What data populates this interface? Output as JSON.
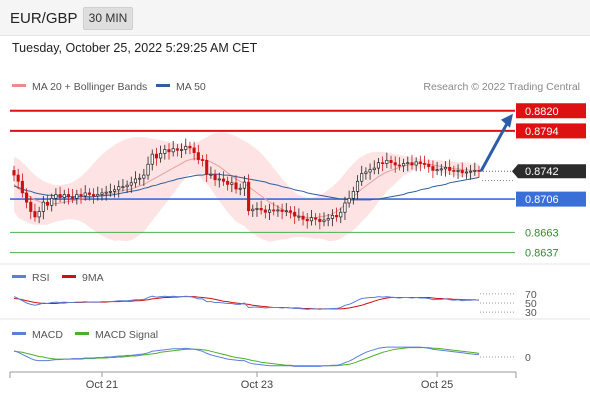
{
  "header": {
    "symbol": "EUR/GBP",
    "timeframe": "30 MIN",
    "datetime": "Tuesday, October 25, 2022 5:29:25 AM CET"
  },
  "colors": {
    "candle_up": "#222222",
    "candle_down": "#cc1111",
    "resistance": "#dd1111",
    "support": "#3a6fd8",
    "target": "#4caf50",
    "ma20": "#e8a0a0",
    "bollinger_fill": "#fde3e3",
    "ma50": "#2f5f9e",
    "arrow": "#2a5ca8",
    "current_price_bg": "#2b2b2b",
    "rsi": "#5b7fdb",
    "rsi_9ma": "#cc1111",
    "macd": "#5b7fdb",
    "macd_signal": "#4caf2a"
  },
  "chart_data": [
    {
      "type": "candlestick",
      "title": "",
      "legend": [
        {
          "name": "MA 20 + Bollinger Bands",
          "color": "#f08a8a"
        },
        {
          "name": "MA 50",
          "color": "#2f5f9e"
        }
      ],
      "watermark": "Research © 2022 Trading Central",
      "x_ticks": [
        "Oct 21",
        "Oct 23",
        "Oct 25"
      ],
      "ylim": [
        0.863,
        0.883
      ],
      "levels": [
        {
          "value": 0.882,
          "label": "0.8820",
          "kind": "resistance"
        },
        {
          "value": 0.8794,
          "label": "0.8794",
          "kind": "resistance"
        },
        {
          "value": 0.8742,
          "label": "0.8742",
          "kind": "current"
        },
        {
          "value": 0.8706,
          "label": "0.8706",
          "kind": "support"
        },
        {
          "value": 0.8663,
          "label": "0.8663",
          "kind": "target"
        },
        {
          "value": 0.8637,
          "label": "0.8637",
          "kind": "target"
        }
      ],
      "close": [
        0.8737,
        0.8729,
        0.8714,
        0.8702,
        0.869,
        0.8683,
        0.869,
        0.8702,
        0.8698,
        0.8707,
        0.8712,
        0.8708,
        0.8712,
        0.8709,
        0.8707,
        0.8712,
        0.871,
        0.8714,
        0.8712,
        0.871,
        0.8712,
        0.8714,
        0.8715,
        0.8716,
        0.8718,
        0.8722,
        0.8722,
        0.8724,
        0.8727,
        0.8732,
        0.8733,
        0.8737,
        0.8751,
        0.8764,
        0.8759,
        0.8765,
        0.877,
        0.8767,
        0.8771,
        0.8769,
        0.877,
        0.8774,
        0.8772,
        0.8766,
        0.8757,
        0.8756,
        0.8738,
        0.8738,
        0.8731,
        0.8732,
        0.8729,
        0.8725,
        0.8727,
        0.8719,
        0.872,
        0.8728,
        0.8691,
        0.8693,
        0.8694,
        0.8692,
        0.8689,
        0.8692,
        0.8691,
        0.8692,
        0.869,
        0.8691,
        0.8689,
        0.8684,
        0.8684,
        0.868,
        0.8678,
        0.8682,
        0.868,
        0.8677,
        0.8679,
        0.8681,
        0.8685,
        0.8683,
        0.8689,
        0.8701,
        0.8707,
        0.8716,
        0.8729,
        0.8739,
        0.8741,
        0.8744,
        0.8746,
        0.8753,
        0.8752,
        0.8756,
        0.8753,
        0.875,
        0.8749,
        0.8752,
        0.8753,
        0.875,
        0.8754,
        0.8752,
        0.8751,
        0.8748,
        0.8743,
        0.8744,
        0.8745,
        0.8747,
        0.8743,
        0.8742,
        0.8743,
        0.874,
        0.8741,
        0.8742,
        0.8743,
        0.8742
      ],
      "ma20": [
        0.8725,
        0.872,
        0.8716,
        0.8712,
        0.8708,
        0.8705,
        0.8703,
        0.8701,
        0.87,
        0.87,
        0.87,
        0.8701,
        0.8702,
        0.8703,
        0.8704,
        0.8705,
        0.8706,
        0.8707,
        0.8708,
        0.8709,
        0.871,
        0.8711,
        0.8712,
        0.8713,
        0.8714,
        0.8716,
        0.8717,
        0.8718,
        0.8719,
        0.8721,
        0.8723,
        0.8725,
        0.8728,
        0.8731,
        0.8734,
        0.8737,
        0.874,
        0.8743,
        0.8746,
        0.8749,
        0.8752,
        0.8755,
        0.8757,
        0.8758,
        0.8758,
        0.8757,
        0.8756,
        0.8754,
        0.8751,
        0.8748,
        0.8744,
        0.874,
        0.8736,
        0.8732,
        0.8729,
        0.8726,
        0.8722,
        0.8718,
        0.8714,
        0.871,
        0.8706,
        0.8702,
        0.8699,
        0.8696,
        0.8693,
        0.869,
        0.8688,
        0.8686,
        0.8684,
        0.8683,
        0.8682,
        0.8682,
        0.8682,
        0.8683,
        0.8684,
        0.8685,
        0.8687,
        0.869,
        0.8694,
        0.8699,
        0.8704,
        0.8709,
        0.8714,
        0.8719,
        0.8723,
        0.8727,
        0.8731,
        0.8735,
        0.8738,
        0.8741,
        0.8743,
        0.8745,
        0.8747,
        0.8749,
        0.875,
        0.8751,
        0.8752,
        0.8752,
        0.8752,
        0.8751,
        0.875,
        0.8749,
        0.8748,
        0.8747,
        0.8746,
        0.8745,
        0.8745,
        0.8744,
        0.8744,
        0.8743,
        0.8743,
        0.8743
      ],
      "bb_upper": [
        0.876,
        0.8758,
        0.8753,
        0.8748,
        0.8742,
        0.8737,
        0.8733,
        0.8729,
        0.8727,
        0.8725,
        0.8724,
        0.8724,
        0.8725,
        0.8726,
        0.8728,
        0.8731,
        0.8735,
        0.874,
        0.8746,
        0.8752,
        0.8758,
        0.8763,
        0.8768,
        0.8772,
        0.8776,
        0.8779,
        0.8782,
        0.8784,
        0.8785,
        0.8786,
        0.8786,
        0.8786,
        0.8785,
        0.8784,
        0.8783,
        0.8782,
        0.8781,
        0.878,
        0.8779,
        0.8778,
        0.8777,
        0.8776,
        0.8776,
        0.8778,
        0.878,
        0.8783,
        0.8786,
        0.8789,
        0.8791,
        0.8792,
        0.8792,
        0.8791,
        0.8789,
        0.8787,
        0.8784,
        0.8781,
        0.8778,
        0.8774,
        0.877,
        0.8765,
        0.8759,
        0.8753,
        0.8746,
        0.8739,
        0.8732,
        0.8726,
        0.872,
        0.8715,
        0.8711,
        0.8709,
        0.8708,
        0.8708,
        0.8709,
        0.8711,
        0.8714,
        0.8718,
        0.8722,
        0.8727,
        0.8733,
        0.8739,
        0.8746,
        0.8752,
        0.8757,
        0.8761,
        0.8764,
        0.8766,
        0.8767,
        0.8767,
        0.8767,
        0.8766,
        0.8765,
        0.8764,
        0.8763,
        0.8762,
        0.8761,
        0.876,
        0.8759,
        0.8758,
        0.8757,
        0.8757,
        0.8756,
        0.8756,
        0.8756,
        0.8755,
        0.8755,
        0.8754,
        0.8754,
        0.8754,
        0.8753,
        0.8753,
        0.8752,
        0.8752
      ],
      "bb_lower": [
        0.869,
        0.8682,
        0.8679,
        0.8676,
        0.8674,
        0.8673,
        0.8673,
        0.8673,
        0.8673,
        0.8675,
        0.8677,
        0.8678,
        0.8679,
        0.868,
        0.868,
        0.8679,
        0.8677,
        0.8674,
        0.867,
        0.8666,
        0.8662,
        0.8659,
        0.8656,
        0.8654,
        0.8652,
        0.8653,
        0.8652,
        0.8652,
        0.8653,
        0.8656,
        0.866,
        0.8664,
        0.8671,
        0.8678,
        0.8685,
        0.8692,
        0.8699,
        0.8706,
        0.8713,
        0.872,
        0.8727,
        0.8734,
        0.8738,
        0.8738,
        0.8736,
        0.8731,
        0.8726,
        0.8719,
        0.8711,
        0.8704,
        0.8696,
        0.8689,
        0.8683,
        0.8677,
        0.8674,
        0.8671,
        0.8666,
        0.8662,
        0.8658,
        0.8655,
        0.8653,
        0.8651,
        0.8652,
        0.8653,
        0.8654,
        0.8654,
        0.8656,
        0.8657,
        0.8657,
        0.8657,
        0.8656,
        0.8656,
        0.8655,
        0.8655,
        0.8654,
        0.8652,
        0.8652,
        0.8653,
        0.8655,
        0.8659,
        0.8662,
        0.8666,
        0.8671,
        0.8677,
        0.8682,
        0.8688,
        0.8695,
        0.8703,
        0.8709,
        0.8716,
        0.8721,
        0.8726,
        0.8731,
        0.8736,
        0.8739,
        0.8742,
        0.8745,
        0.8746,
        0.8747,
        0.8745,
        0.8744,
        0.8742,
        0.874,
        0.8739,
        0.8737,
        0.8736,
        0.8736,
        0.8734,
        0.8735,
        0.8733,
        0.8734,
        0.8734
      ],
      "ma50": [
        0.8723,
        0.8721,
        0.8719,
        0.8717,
        0.8716,
        0.8714,
        0.8713,
        0.8712,
        0.8711,
        0.8711,
        0.871,
        0.871,
        0.8709,
        0.8709,
        0.8709,
        0.8709,
        0.8709,
        0.8709,
        0.8709,
        0.8709,
        0.871,
        0.871,
        0.8711,
        0.8711,
        0.8712,
        0.8713,
        0.8714,
        0.8715,
        0.8716,
        0.8717,
        0.8718,
        0.872,
        0.8721,
        0.8723,
        0.8724,
        0.8726,
        0.8727,
        0.8729,
        0.873,
        0.8732,
        0.8733,
        0.8734,
        0.8735,
        0.8736,
        0.8737,
        0.8737,
        0.8738,
        0.8738,
        0.8738,
        0.8738,
        0.8737,
        0.8737,
        0.8736,
        0.8735,
        0.8734,
        0.8733,
        0.8732,
        0.8731,
        0.873,
        0.8729,
        0.8728,
        0.8726,
        0.8725,
        0.8724,
        0.8722,
        0.8721,
        0.872,
        0.8718,
        0.8717,
        0.8716,
        0.8714,
        0.8713,
        0.8712,
        0.8711,
        0.871,
        0.8709,
        0.8708,
        0.8707,
        0.8706,
        0.8706,
        0.8705,
        0.8705,
        0.8705,
        0.8705,
        0.8705,
        0.8705,
        0.8706,
        0.8706,
        0.8707,
        0.8708,
        0.8709,
        0.871,
        0.8711,
        0.8712,
        0.8714,
        0.8715,
        0.8716,
        0.8718,
        0.8719,
        0.872,
        0.8722,
        0.8723,
        0.8724,
        0.8725,
        0.8727,
        0.8728,
        0.8729,
        0.873,
        0.8731,
        0.8732,
        0.8733,
        0.8734
      ],
      "projection": {
        "from": 0.8742,
        "to": 0.882
      }
    },
    {
      "type": "line",
      "title": "",
      "legend": [
        {
          "name": "RSI",
          "color": "#5b7fdb"
        },
        {
          "name": "9MA",
          "color": "#cc1111"
        }
      ],
      "ylim": [
        28,
        72
      ],
      "y_ticks": [
        "70",
        "50",
        "30"
      ],
      "series": [
        {
          "name": "RSI",
          "values": [
            64,
            60,
            55,
            50,
            47,
            45,
            47,
            50,
            49,
            51,
            52,
            51,
            52,
            51,
            51,
            52,
            52,
            53,
            52,
            52,
            52,
            53,
            53,
            53,
            54,
            55,
            55,
            55,
            56,
            57,
            57,
            58,
            62,
            65,
            63,
            64,
            65,
            64,
            65,
            64,
            64,
            65,
            64,
            62,
            59,
            59,
            53,
            53,
            51,
            51,
            50,
            49,
            49,
            47,
            47,
            50,
            40,
            41,
            41,
            40,
            39,
            40,
            40,
            40,
            39,
            40,
            39,
            38,
            38,
            37,
            36,
            37,
            37,
            36,
            37,
            37,
            38,
            38,
            40,
            45,
            47,
            51,
            56,
            60,
            61,
            62,
            62,
            64,
            63,
            64,
            63,
            62,
            61,
            62,
            62,
            61,
            62,
            61,
            61,
            60,
            57,
            58,
            58,
            59,
            57,
            56,
            57,
            55,
            56,
            56,
            57,
            56
          ]
        },
        {
          "name": "9MA",
          "values": [
            60,
            59,
            57,
            55,
            53,
            51,
            50,
            49,
            49,
            49,
            49,
            50,
            50,
            51,
            51,
            51,
            51,
            52,
            52,
            52,
            52,
            52,
            52,
            53,
            53,
            53,
            54,
            54,
            54,
            55,
            55,
            56,
            57,
            59,
            60,
            61,
            62,
            62,
            63,
            63,
            64,
            64,
            64,
            64,
            63,
            62,
            61,
            60,
            58,
            56,
            54,
            53,
            51,
            50,
            49,
            48,
            47,
            45,
            44,
            43,
            42,
            41,
            40,
            40,
            40,
            40,
            39,
            39,
            39,
            38,
            38,
            38,
            37,
            37,
            37,
            37,
            37,
            37,
            37,
            38,
            39,
            41,
            43,
            45,
            48,
            51,
            54,
            57,
            59,
            61,
            62,
            62,
            62,
            62,
            62,
            62,
            62,
            62,
            62,
            62,
            61,
            60,
            60,
            59,
            59,
            58,
            58,
            57,
            57,
            57,
            57,
            56
          ]
        }
      ]
    },
    {
      "type": "line",
      "title": "",
      "legend": [
        {
          "name": "MACD",
          "color": "#5b7fdb"
        },
        {
          "name": "MACD Signal",
          "color": "#4caf2a"
        }
      ],
      "ylim": [
        -0.0025,
        0.0025
      ],
      "y_ticks": [
        "0"
      ],
      "series": [
        {
          "name": "MACD",
          "values": [
            0.0012,
            0.0009,
            0.0005,
            0.0001,
            -0.0003,
            -0.0006,
            -0.0007,
            -0.0007,
            -0.0007,
            -0.0006,
            -0.0005,
            -0.0005,
            -0.0004,
            -0.0004,
            -0.0003,
            -0.0003,
            -0.0003,
            -0.0002,
            -0.0002,
            -0.0002,
            -0.0001,
            -0.0001,
            0.0,
            0.0,
            0.0001,
            0.0002,
            0.0002,
            0.0003,
            0.0003,
            0.0004,
            0.0005,
            0.0006,
            0.0008,
            0.0011,
            0.0012,
            0.0013,
            0.0014,
            0.0015,
            0.0016,
            0.0016,
            0.0016,
            0.0017,
            0.0016,
            0.0015,
            0.0013,
            0.0011,
            0.0007,
            0.0004,
            0.0002,
            0.0,
            -0.0002,
            -0.0004,
            -0.0005,
            -0.0006,
            -0.0007,
            -0.0007,
            -0.0011,
            -0.0013,
            -0.0014,
            -0.0015,
            -0.0016,
            -0.0017,
            -0.0017,
            -0.0017,
            -0.0017,
            -0.0017,
            -0.0017,
            -0.0018,
            -0.0018,
            -0.0018,
            -0.0018,
            -0.0018,
            -0.0018,
            -0.0018,
            -0.0017,
            -0.0017,
            -0.0016,
            -0.0016,
            -0.0014,
            -0.0011,
            -0.0008,
            -0.0004,
            0.0001,
            0.0005,
            0.0009,
            0.0012,
            0.0014,
            0.0017,
            0.0018,
            0.0019,
            0.0019,
            0.0019,
            0.0019,
            0.0019,
            0.0019,
            0.0019,
            0.0019,
            0.0019,
            0.0018,
            0.0017,
            0.0015,
            0.0014,
            0.0013,
            0.0012,
            0.0011,
            0.001,
            0.0009,
            0.0008,
            0.0007,
            0.0006,
            0.0005,
            0.0005
          ]
        },
        {
          "name": "MACD Signal",
          "values": [
            0.0011,
            0.001,
            0.0009,
            0.0007,
            0.0005,
            0.0003,
            0.0001,
            0.0,
            -0.0002,
            -0.0003,
            -0.0004,
            -0.0004,
            -0.0004,
            -0.0004,
            -0.0004,
            -0.0004,
            -0.0004,
            -0.0003,
            -0.0003,
            -0.0003,
            -0.0002,
            -0.0002,
            -0.0002,
            -0.0001,
            -0.0001,
            0.0,
            0.0,
            0.0001,
            0.0002,
            0.0002,
            0.0003,
            0.0004,
            0.0005,
            0.0006,
            0.0007,
            0.0009,
            0.001,
            0.0011,
            0.0012,
            0.0013,
            0.0014,
            0.0015,
            0.0015,
            0.0015,
            0.0015,
            0.0014,
            0.0013,
            0.0011,
            0.0009,
            0.0007,
            0.0005,
            0.0003,
            0.0001,
            -0.0001,
            -0.0002,
            -0.0003,
            -0.0005,
            -0.0007,
            -0.0008,
            -0.001,
            -0.0011,
            -0.0012,
            -0.0013,
            -0.0014,
            -0.0015,
            -0.0016,
            -0.0016,
            -0.0017,
            -0.0017,
            -0.0017,
            -0.0017,
            -0.0017,
            -0.0017,
            -0.0017,
            -0.0017,
            -0.0017,
            -0.0017,
            -0.0017,
            -0.0016,
            -0.0015,
            -0.0014,
            -0.0012,
            -0.0009,
            -0.0006,
            -0.0003,
            0.0,
            0.0003,
            0.0006,
            0.0009,
            0.0011,
            0.0013,
            0.0015,
            0.0016,
            0.0017,
            0.0018,
            0.0018,
            0.0018,
            0.0018,
            0.0018,
            0.0018,
            0.0017,
            0.0017,
            0.0016,
            0.0015,
            0.0014,
            0.0013,
            0.0012,
            0.0011,
            0.001,
            0.0009,
            0.0008,
            0.0007
          ]
        }
      ]
    }
  ]
}
